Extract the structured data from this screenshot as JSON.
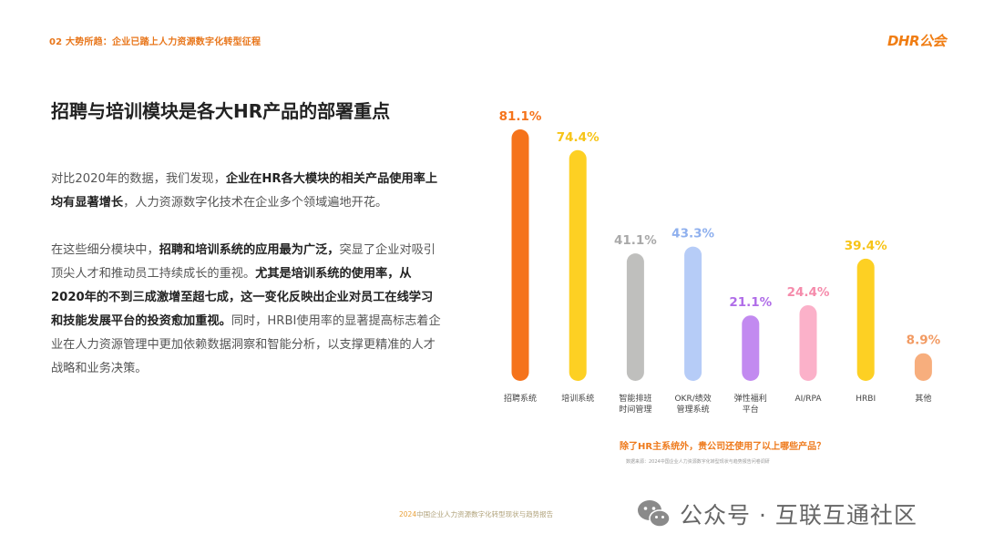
{
  "header": {
    "breadcrumb": "02 大势所趋：企业已踏上人力资源数字化转型征程",
    "logo": "DHR公会"
  },
  "headline": "招聘与培训模块是各大HR产品的部署重点",
  "paragraph1": {
    "a": "对比2020年的数据，我们发现，",
    "b": "企业在HR各大模块的相关产品使用率上均有显著增长",
    "c": "，人力资源数字化技术在企业多个领域遍地开花。"
  },
  "paragraph2": {
    "a": "在这些细分模块中，",
    "b": "招聘和培训系统的应用最为广泛，",
    "c": "突显了企业对吸引顶尖人才和推动员工持续成长的重视。",
    "d": "尤其是培训系统的使用率，从2020年的不到三成激增至超七成，这一变化反映出企业对员工在线学习和技能发展平台的投资愈加重视。",
    "e": "同时，HRBI使用率的显著提高标志着企业在人力资源管理中更加依赖数据洞察和智能分析，以支撑更精准的人才战略和业务决策。"
  },
  "chart_data": {
    "type": "bar",
    "categories": [
      [
        "招聘系统"
      ],
      [
        "培训系统"
      ],
      [
        "智能排班",
        "时间管理"
      ],
      [
        "OKR/绩效",
        "管理系统"
      ],
      [
        "弹性福利",
        "平台"
      ],
      [
        "AI/RPA"
      ],
      [
        "HRBI"
      ],
      [
        "其他"
      ]
    ],
    "values": [
      81.1,
      74.4,
      41.1,
      43.3,
      21.1,
      24.4,
      39.4,
      8.9
    ],
    "value_labels": [
      "81.1%",
      "74.4%",
      "41.1%",
      "43.3%",
      "21.1%",
      "24.4%",
      "39.4%",
      "8.9%"
    ],
    "colors": [
      "#f5731b",
      "#fdd023",
      "#bfbfbd",
      "#b6ccf7",
      "#c28af0",
      "#fbb1c9",
      "#fdd023",
      "#f7ae7d"
    ],
    "label_colors": [
      "#f5731b",
      "#f7c417",
      "#a9a9a9",
      "#8fb0ee",
      "#b06de8",
      "#f58bab",
      "#f7c417",
      "#f29a62"
    ],
    "ylim": [
      0,
      81.1
    ],
    "question": "除了HR主系统外，贵公司还使用了以上哪些产品？",
    "source": "数据来源：2024中国企业人力资源数字化转型现状与趋势报告问卷调研"
  },
  "footer": {
    "report_year": "2024",
    "report_title": "中国企业人力资源数字化转型现状与趋势报告",
    "wechat_text": "公众号 · 互联互通社区"
  }
}
